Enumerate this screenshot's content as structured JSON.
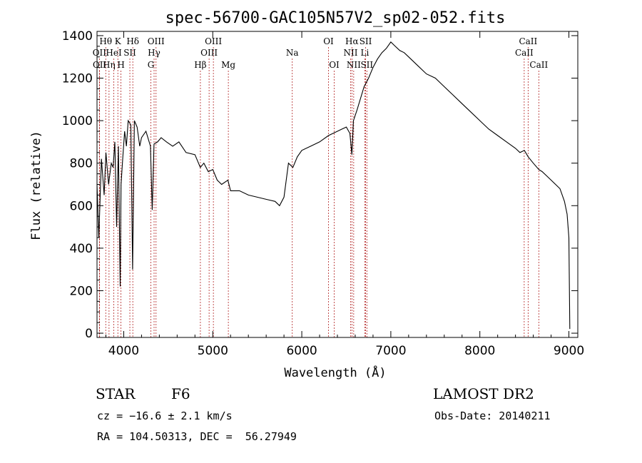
{
  "chart_data": {
    "type": "line",
    "title": "spec-56700-GAC105N57V2_sp02-052.fits",
    "xlabel": "Wavelength (Å)",
    "ylabel": "Flux (relative)",
    "xlim": [
      3700,
      9100
    ],
    "ylim": [
      -20,
      1420
    ],
    "xticks": [
      4000,
      5000,
      6000,
      7000,
      8000,
      9000
    ],
    "yticks": [
      0,
      200,
      400,
      600,
      800,
      1000,
      1200,
      1400
    ],
    "series": [
      {
        "x": [
          3700,
          3720,
          3750,
          3780,
          3800,
          3830,
          3860,
          3880,
          3900,
          3920,
          3940,
          3960,
          3970,
          3990,
          4010,
          4030,
          4050,
          4080,
          4100,
          4120,
          4150,
          4180,
          4200,
          4250,
          4300,
          4320,
          4340,
          4380,
          4420,
          4480,
          4550,
          4620,
          4700,
          4800,
          4860,
          4900,
          4950,
          5000,
          5050,
          5100,
          5170,
          5200,
          5300,
          5400,
          5500,
          5600,
          5700,
          5750,
          5800,
          5850,
          5900,
          5950,
          6000,
          6100,
          6200,
          6300,
          6400,
          6450,
          6500,
          6540,
          6563,
          6580,
          6620,
          6700,
          6750,
          6800,
          6850,
          6900,
          6950,
          7000,
          7050,
          7100,
          7150,
          7200,
          7300,
          7400,
          7500,
          7600,
          7700,
          7800,
          7900,
          8000,
          8100,
          8200,
          8300,
          8400,
          8450,
          8500,
          8542,
          8600,
          8662,
          8700,
          8800,
          8900,
          8950,
          8980,
          9000,
          9010
        ],
        "y": [
          700,
          450,
          820,
          650,
          850,
          700,
          800,
          780,
          900,
          500,
          880,
          220,
          700,
          830,
          950,
          880,
          1000,
          980,
          300,
          1000,
          970,
          880,
          920,
          950,
          880,
          580,
          890,
          900,
          920,
          900,
          880,
          900,
          850,
          840,
          780,
          800,
          760,
          770,
          720,
          700,
          720,
          670,
          670,
          650,
          640,
          630,
          620,
          600,
          640,
          800,
          780,
          830,
          860,
          880,
          900,
          930,
          950,
          960,
          970,
          940,
          840,
          1000,
          1050,
          1160,
          1200,
          1250,
          1290,
          1320,
          1340,
          1370,
          1350,
          1330,
          1320,
          1300,
          1260,
          1220,
          1200,
          1160,
          1120,
          1080,
          1040,
          1000,
          960,
          930,
          900,
          870,
          850,
          860,
          830,
          800,
          770,
          760,
          720,
          680,
          620,
          560,
          450,
          20
        ]
      }
    ],
    "lines": [
      {
        "name": "Hθ",
        "x": 3798,
        "row": 1
      },
      {
        "name": "OII",
        "x": 3727,
        "row": 2
      },
      {
        "name": "OII",
        "x": 3729,
        "row": 3
      },
      {
        "name": "HeI",
        "x": 3889,
        "row": 2
      },
      {
        "name": "Hη",
        "x": 3835,
        "row": 3
      },
      {
        "name": "K",
        "x": 3934,
        "row": 1
      },
      {
        "name": "H",
        "x": 3969,
        "row": 3
      },
      {
        "name": "SII",
        "x": 4069,
        "row": 2
      },
      {
        "name": "Hδ",
        "x": 4102,
        "row": 1
      },
      {
        "name": "OIII",
        "x": 4363,
        "row": 1
      },
      {
        "name": "Hγ",
        "x": 4341,
        "row": 2
      },
      {
        "name": "G",
        "x": 4305,
        "row": 3
      },
      {
        "name": "Hβ",
        "x": 4861,
        "row": 3
      },
      {
        "name": "OIII",
        "x": 5007,
        "row": 1
      },
      {
        "name": "OIII",
        "x": 4959,
        "row": 2
      },
      {
        "name": "Mg",
        "x": 5175,
        "row": 3
      },
      {
        "name": "Na",
        "x": 5893,
        "row": 2
      },
      {
        "name": "OI",
        "x": 6300,
        "row": 1
      },
      {
        "name": "OI",
        "x": 6364,
        "row": 3
      },
      {
        "name": "Hα",
        "x": 6563,
        "row": 1
      },
      {
        "name": "SII",
        "x": 6717,
        "row": 1
      },
      {
        "name": "NII",
        "x": 6548,
        "row": 2
      },
      {
        "name": "Li",
        "x": 6708,
        "row": 2
      },
      {
        "name": "NII",
        "x": 6583,
        "row": 3
      },
      {
        "name": "SII",
        "x": 6731,
        "row": 3
      },
      {
        "name": "CaII",
        "x": 8542,
        "row": 1
      },
      {
        "name": "CaII",
        "x": 8498,
        "row": 2
      },
      {
        "name": "CaII",
        "x": 8662,
        "row": 3
      }
    ],
    "colors": {
      "line_markers": "#b22222",
      "spectrum": "#000000"
    }
  },
  "info": {
    "class": "STAR",
    "subclass": "F6",
    "survey": "LAMOST DR2",
    "cz": "cz = −16.6 ± 2.1 km/s",
    "obs_date": "Obs-Date: 20140211",
    "coords": "RA = 104.50313, DEC =  56.27949"
  }
}
